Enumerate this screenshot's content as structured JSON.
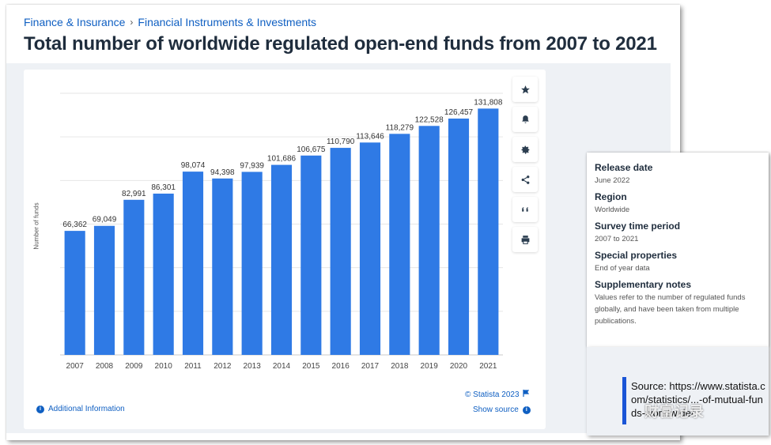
{
  "breadcrumb": {
    "items": [
      "Finance & Insurance",
      "Financial Instruments & Investments"
    ],
    "separator": "›"
  },
  "page_title": "Total number of worldwide regulated open-end funds from 2007 to 2021",
  "chart_data": {
    "type": "bar",
    "title": "Total number of worldwide regulated open-end funds from 2007 to 2021",
    "xlabel": "",
    "ylabel": "Number of funds",
    "categories": [
      "2007",
      "2008",
      "2009",
      "2010",
      "2011",
      "2012",
      "2013",
      "2014",
      "2015",
      "2016",
      "2017",
      "2018",
      "2019",
      "2020",
      "2021"
    ],
    "values": [
      66362,
      69049,
      82991,
      86301,
      98074,
      94398,
      97939,
      101686,
      106675,
      110790,
      113646,
      118279,
      122528,
      126457,
      131808
    ],
    "value_labels": [
      "66,362",
      "69,049",
      "82,991",
      "86,301",
      "98,074",
      "94,398",
      "97,939",
      "101,686",
      "106,675",
      "110,790",
      "113,646",
      "118,279",
      "122,528",
      "126,457",
      "131,808"
    ],
    "ylim": [
      0,
      140000
    ],
    "grid": true,
    "y_tick_labels_shown": false,
    "bar_color": "#2f7ae5"
  },
  "footer": {
    "additional_info": "Additional Information",
    "copyright": "© Statista 2023",
    "show_source": "Show source"
  },
  "toolbar": {
    "buttons": [
      "star-icon",
      "bell-icon",
      "gear-icon",
      "share-icon",
      "quote-icon",
      "print-icon"
    ]
  },
  "details": {
    "release_date_label": "Release date",
    "release_date_value": "June 2022",
    "region_label": "Region",
    "region_value": "Worldwide",
    "survey_period_label": "Survey time period",
    "survey_period_value": "2007 to 2021",
    "special_label": "Special properties",
    "special_value": "End of year data",
    "notes_label": "Supplementary notes",
    "notes_value": "Values refer to the number of regulated funds globally, and have been taken from multiple publications."
  },
  "source_note": {
    "text": "Source: https://www.statista.com/statistics/...-of-mutual-funds-worldwide/"
  },
  "watermark": {
    "text": "财富记录"
  },
  "colors": {
    "accent": "#0f5fc2",
    "bar": "#2f7ae5",
    "source_bar": "#1a55d6"
  }
}
